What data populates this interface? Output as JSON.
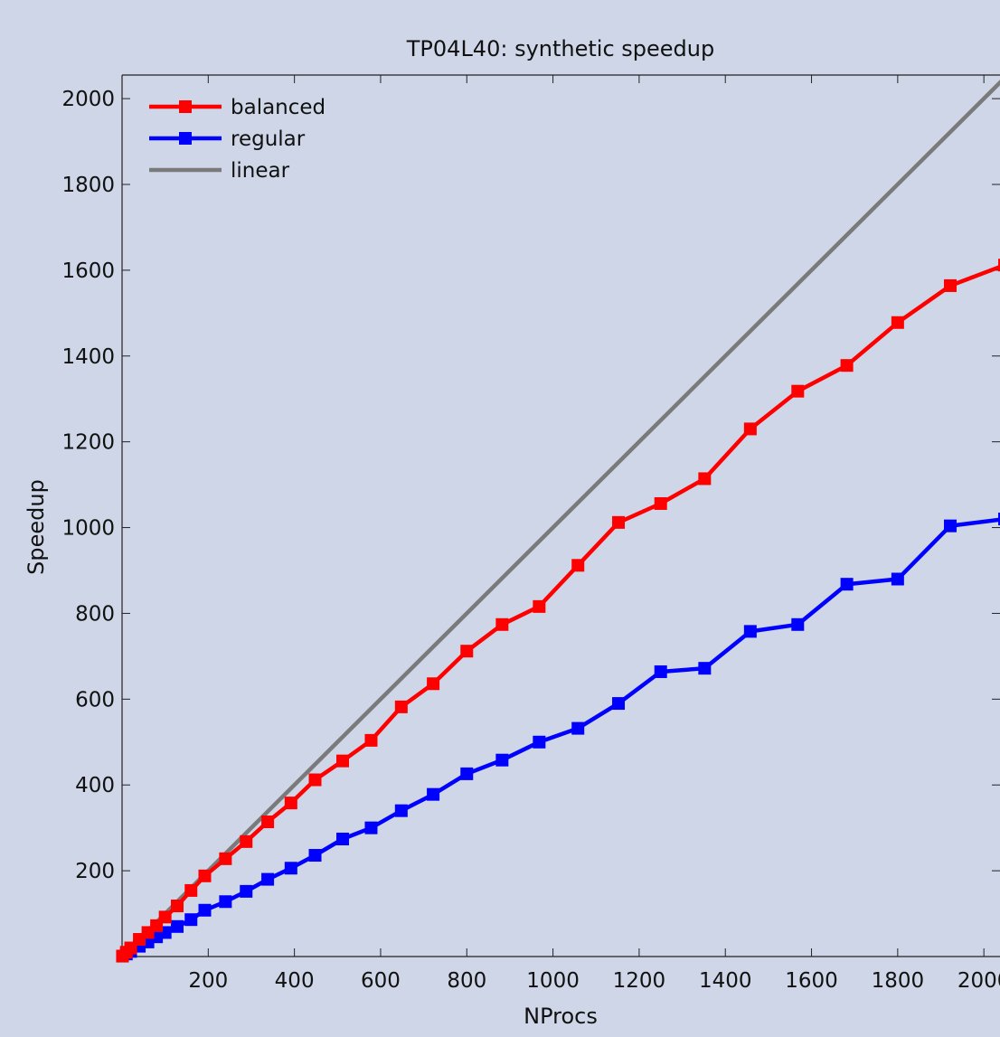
{
  "chart_data": {
    "type": "line",
    "title": "TP04L40: synthetic speedup",
    "xlabel": "NProcs",
    "ylabel": "Speedup",
    "xlim": [
      0,
      2050
    ],
    "ylim": [
      0,
      2055
    ],
    "xticks": [
      200,
      400,
      600,
      800,
      1000,
      1200,
      1400,
      1600,
      1800,
      2000
    ],
    "yticks": [
      200,
      400,
      600,
      800,
      1000,
      1200,
      1400,
      1600,
      1800,
      2000
    ],
    "grid": false,
    "legend_position": "top-left",
    "series": [
      {
        "name": "balanced",
        "color": "#ff0000",
        "marker": "square",
        "x": [
          1,
          10,
          20,
          40,
          60,
          80,
          100,
          128,
          160,
          192,
          240,
          288,
          338,
          392,
          448,
          512,
          578,
          648,
          722,
          800,
          882,
          968,
          1058,
          1152,
          1250,
          1352,
          1458,
          1568,
          1682,
          1800,
          1922,
          2048
        ],
        "y": [
          1,
          10,
          20,
          40,
          56,
          72,
          92,
          118,
          154,
          188,
          228,
          268,
          314,
          358,
          412,
          456,
          504,
          582,
          636,
          712,
          774,
          816,
          912,
          1012,
          1056,
          1114,
          1230,
          1318,
          1378,
          1478,
          1564,
          1612
        ]
      },
      {
        "name": "regular",
        "color": "#0000ff",
        "marker": "square",
        "x": [
          1,
          10,
          20,
          40,
          60,
          80,
          100,
          128,
          160,
          192,
          240,
          288,
          338,
          392,
          448,
          512,
          578,
          648,
          722,
          800,
          882,
          968,
          1058,
          1152,
          1250,
          1352,
          1458,
          1568,
          1682,
          1800,
          1922,
          2048
        ],
        "y": [
          1,
          6,
          12,
          24,
          34,
          46,
          56,
          70,
          86,
          108,
          128,
          152,
          180,
          206,
          236,
          274,
          300,
          340,
          378,
          426,
          458,
          500,
          532,
          590,
          664,
          672,
          758,
          774,
          868,
          880,
          1004,
          1020
        ]
      },
      {
        "name": "linear",
        "color": "#7a7a7a",
        "marker": "none",
        "x": [
          1,
          2048
        ],
        "y": [
          1,
          2048
        ]
      }
    ]
  }
}
